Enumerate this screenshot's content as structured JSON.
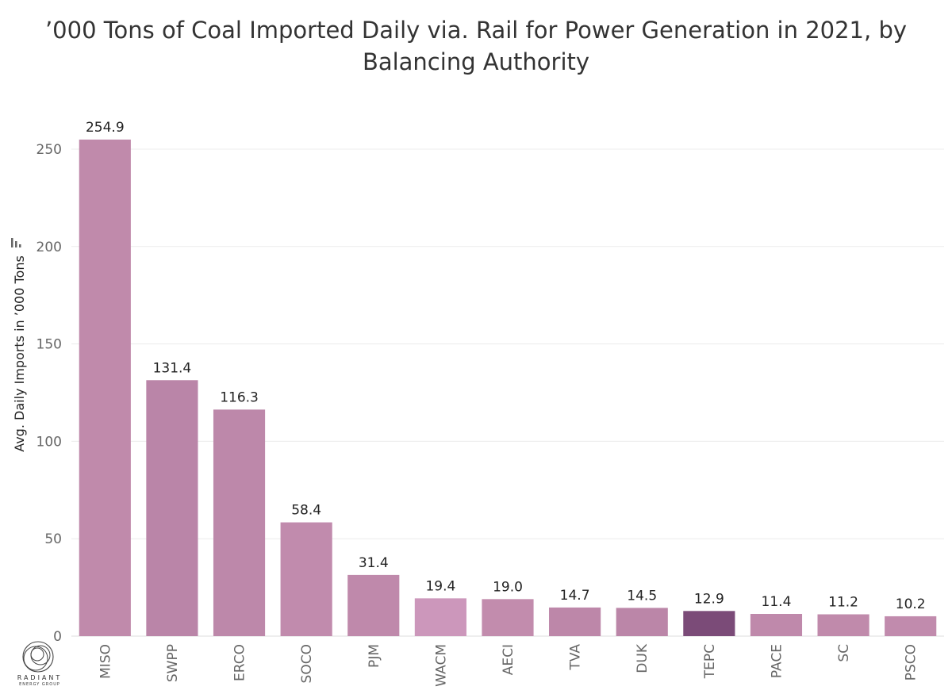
{
  "chart_data": {
    "type": "bar",
    "title_lines": [
      "’000 Tons of Coal Imported Daily via. Rail for Power Generation in 2021, by",
      "Balancing Authority"
    ],
    "xlabel": "",
    "ylabel": "Avg. Daily Imports in ’000 Tons",
    "ylim": [
      0,
      275
    ],
    "yticks": [
      0,
      50,
      100,
      150,
      200,
      250
    ],
    "grid": true,
    "categories": [
      "MISO",
      "SWPP",
      "ERCO",
      "SOCO",
      "PJM",
      "WACM",
      "AECI",
      "TVA",
      "DUK",
      "TEPC",
      "PACE",
      "SC",
      "PSCO"
    ],
    "values": [
      254.9,
      131.4,
      116.3,
      58.4,
      31.4,
      19.4,
      19.0,
      14.7,
      14.5,
      12.9,
      11.4,
      11.2,
      10.2
    ],
    "value_labels": [
      "254.9",
      "131.4",
      "116.3",
      "58.4",
      "31.4",
      "19.4",
      "19.0",
      "14.7",
      "14.5",
      "12.9",
      "11.4",
      "11.2",
      "10.2"
    ],
    "colors": [
      "#c08aab",
      "#ba85a8",
      "#bd88aa",
      "#c18bad",
      "#bf89ab",
      "#cc97bb",
      "#c28cad",
      "#bd87a9",
      "#bb86a8",
      "#7b4b78",
      "#bf89ab",
      "#c08aab",
      "#c18bad"
    ]
  },
  "logo": {
    "name": "RADIANT",
    "subtitle": "ENERGY GROUP"
  }
}
